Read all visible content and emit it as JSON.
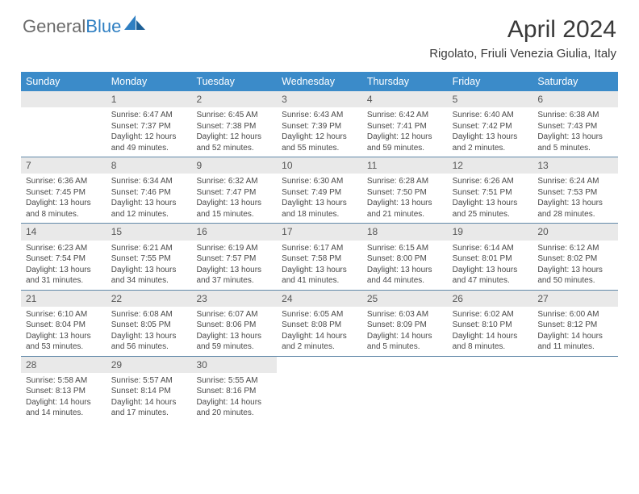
{
  "brand": {
    "part1": "General",
    "part2": "Blue"
  },
  "title": "April 2024",
  "location": "Rigolato, Friuli Venezia Giulia, Italy",
  "weekday_header_bg": "#3b8bc9",
  "daynum_bg": "#e9e9e9",
  "text_color": "#494949",
  "weekdays": [
    "Sunday",
    "Monday",
    "Tuesday",
    "Wednesday",
    "Thursday",
    "Friday",
    "Saturday"
  ],
  "weeks": [
    [
      {
        "n": "",
        "rise": "",
        "set": "",
        "dayl": ""
      },
      {
        "n": "1",
        "rise": "6:47 AM",
        "set": "7:37 PM",
        "dayl": "12 hours and 49 minutes."
      },
      {
        "n": "2",
        "rise": "6:45 AM",
        "set": "7:38 PM",
        "dayl": "12 hours and 52 minutes."
      },
      {
        "n": "3",
        "rise": "6:43 AM",
        "set": "7:39 PM",
        "dayl": "12 hours and 55 minutes."
      },
      {
        "n": "4",
        "rise": "6:42 AM",
        "set": "7:41 PM",
        "dayl": "12 hours and 59 minutes."
      },
      {
        "n": "5",
        "rise": "6:40 AM",
        "set": "7:42 PM",
        "dayl": "13 hours and 2 minutes."
      },
      {
        "n": "6",
        "rise": "6:38 AM",
        "set": "7:43 PM",
        "dayl": "13 hours and 5 minutes."
      }
    ],
    [
      {
        "n": "7",
        "rise": "6:36 AM",
        "set": "7:45 PM",
        "dayl": "13 hours and 8 minutes."
      },
      {
        "n": "8",
        "rise": "6:34 AM",
        "set": "7:46 PM",
        "dayl": "13 hours and 12 minutes."
      },
      {
        "n": "9",
        "rise": "6:32 AM",
        "set": "7:47 PM",
        "dayl": "13 hours and 15 minutes."
      },
      {
        "n": "10",
        "rise": "6:30 AM",
        "set": "7:49 PM",
        "dayl": "13 hours and 18 minutes."
      },
      {
        "n": "11",
        "rise": "6:28 AM",
        "set": "7:50 PM",
        "dayl": "13 hours and 21 minutes."
      },
      {
        "n": "12",
        "rise": "6:26 AM",
        "set": "7:51 PM",
        "dayl": "13 hours and 25 minutes."
      },
      {
        "n": "13",
        "rise": "6:24 AM",
        "set": "7:53 PM",
        "dayl": "13 hours and 28 minutes."
      }
    ],
    [
      {
        "n": "14",
        "rise": "6:23 AM",
        "set": "7:54 PM",
        "dayl": "13 hours and 31 minutes."
      },
      {
        "n": "15",
        "rise": "6:21 AM",
        "set": "7:55 PM",
        "dayl": "13 hours and 34 minutes."
      },
      {
        "n": "16",
        "rise": "6:19 AM",
        "set": "7:57 PM",
        "dayl": "13 hours and 37 minutes."
      },
      {
        "n": "17",
        "rise": "6:17 AM",
        "set": "7:58 PM",
        "dayl": "13 hours and 41 minutes."
      },
      {
        "n": "18",
        "rise": "6:15 AM",
        "set": "8:00 PM",
        "dayl": "13 hours and 44 minutes."
      },
      {
        "n": "19",
        "rise": "6:14 AM",
        "set": "8:01 PM",
        "dayl": "13 hours and 47 minutes."
      },
      {
        "n": "20",
        "rise": "6:12 AM",
        "set": "8:02 PM",
        "dayl": "13 hours and 50 minutes."
      }
    ],
    [
      {
        "n": "21",
        "rise": "6:10 AM",
        "set": "8:04 PM",
        "dayl": "13 hours and 53 minutes."
      },
      {
        "n": "22",
        "rise": "6:08 AM",
        "set": "8:05 PM",
        "dayl": "13 hours and 56 minutes."
      },
      {
        "n": "23",
        "rise": "6:07 AM",
        "set": "8:06 PM",
        "dayl": "13 hours and 59 minutes."
      },
      {
        "n": "24",
        "rise": "6:05 AM",
        "set": "8:08 PM",
        "dayl": "14 hours and 2 minutes."
      },
      {
        "n": "25",
        "rise": "6:03 AM",
        "set": "8:09 PM",
        "dayl": "14 hours and 5 minutes."
      },
      {
        "n": "26",
        "rise": "6:02 AM",
        "set": "8:10 PM",
        "dayl": "14 hours and 8 minutes."
      },
      {
        "n": "27",
        "rise": "6:00 AM",
        "set": "8:12 PM",
        "dayl": "14 hours and 11 minutes."
      }
    ],
    [
      {
        "n": "28",
        "rise": "5:58 AM",
        "set": "8:13 PM",
        "dayl": "14 hours and 14 minutes."
      },
      {
        "n": "29",
        "rise": "5:57 AM",
        "set": "8:14 PM",
        "dayl": "14 hours and 17 minutes."
      },
      {
        "n": "30",
        "rise": "5:55 AM",
        "set": "8:16 PM",
        "dayl": "14 hours and 20 minutes."
      },
      {
        "n": "",
        "rise": "",
        "set": "",
        "dayl": ""
      },
      {
        "n": "",
        "rise": "",
        "set": "",
        "dayl": ""
      },
      {
        "n": "",
        "rise": "",
        "set": "",
        "dayl": ""
      },
      {
        "n": "",
        "rise": "",
        "set": "",
        "dayl": ""
      }
    ]
  ],
  "labels": {
    "sunrise": "Sunrise: ",
    "sunset": "Sunset: ",
    "daylight": "Daylight: "
  }
}
